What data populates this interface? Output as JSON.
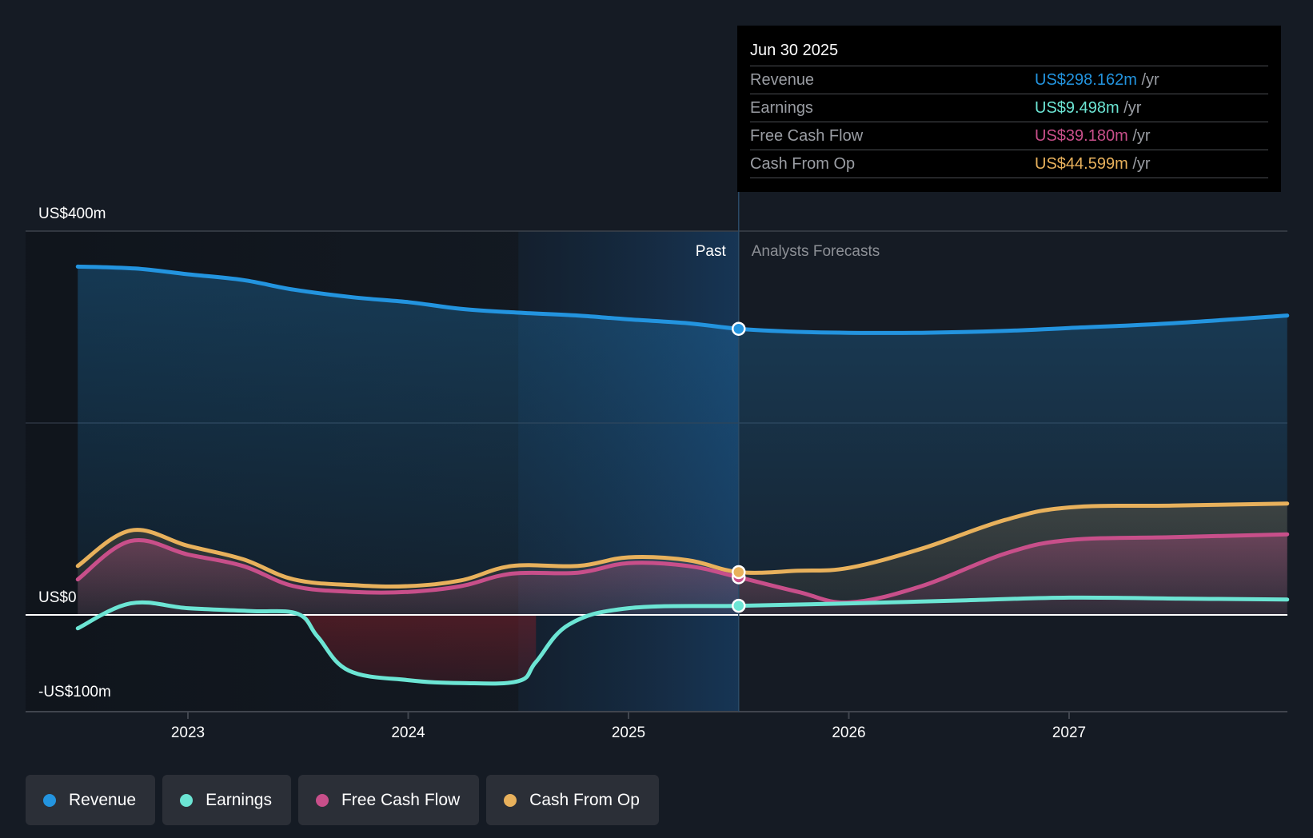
{
  "tooltip": {
    "date": "Jun 30 2025",
    "unit_suffix": "/yr",
    "rows": [
      {
        "label": "Revenue",
        "value": "US$298.162m",
        "color": "#2394df"
      },
      {
        "label": "Earnings",
        "value": "US$9.498m",
        "color": "#6ce5d4"
      },
      {
        "label": "Free Cash Flow",
        "value": "US$39.180m",
        "color": "#c84f8a"
      },
      {
        "label": "Cash From Op",
        "value": "US$44.599m",
        "color": "#e8b15c"
      }
    ]
  },
  "legend": [
    {
      "label": "Revenue",
      "color": "#2394df"
    },
    {
      "label": "Earnings",
      "color": "#6ce5d4"
    },
    {
      "label": "Free Cash Flow",
      "color": "#c84f8a"
    },
    {
      "label": "Cash From Op",
      "color": "#e8b15c"
    }
  ],
  "chart_data": {
    "type": "line",
    "title": "",
    "xlabel": "",
    "ylabel": "",
    "y_tick_labels": [
      "US$400m",
      "US$0",
      "-US$100m"
    ],
    "y_ticks": [
      400,
      0,
      -100
    ],
    "ylim": [
      -100,
      400
    ],
    "xlim": [
      2022.26,
      2028.0
    ],
    "x_tick_labels": [
      "2023",
      "2024",
      "2025",
      "2026",
      "2027"
    ],
    "x_ticks": [
      2023,
      2024,
      2025,
      2026,
      2027
    ],
    "past_label": "Past",
    "forecast_label": "Analysts Forecasts",
    "past_end": 2025.5,
    "highlight_start": 2024.5,
    "grid": true,
    "legend_position": "bottom",
    "series": [
      {
        "name": "Revenue",
        "color": "#2394df",
        "x": [
          2022.5,
          2022.76,
          2023.0,
          2023.25,
          2023.48,
          2023.75,
          2024.0,
          2024.24,
          2024.5,
          2024.77,
          2025.0,
          2025.27,
          2025.5,
          2025.77,
          2026.0,
          2026.33,
          2026.71,
          2027.0,
          2027.47,
          2027.99
        ],
        "values": [
          363,
          361,
          355,
          349,
          339,
          331,
          326,
          319,
          315,
          312,
          308,
          304,
          298.162,
          295,
          294,
          294,
          296,
          299,
          304,
          312
        ]
      },
      {
        "name": "Earnings",
        "color": "#6ce5d4",
        "x": [
          2022.5,
          2022.74,
          2023.0,
          2023.29,
          2023.5,
          2023.59,
          2023.73,
          2024.0,
          2024.24,
          2024.5,
          2024.58,
          2024.73,
          2025.0,
          2025.5,
          2026.0,
          2026.5,
          2027.0,
          2027.5,
          2027.99
        ],
        "values": [
          -14,
          12,
          7,
          4,
          1,
          -23,
          -58,
          -68,
          -71,
          -69,
          -49,
          -10,
          7,
          9.498,
          12,
          15,
          18,
          17,
          16
        ]
      },
      {
        "name": "Free Cash Flow",
        "color": "#c84f8a",
        "x": [
          2022.5,
          2022.74,
          2023.0,
          2023.25,
          2023.48,
          2023.75,
          2024.0,
          2024.24,
          2024.47,
          2024.77,
          2025.0,
          2025.27,
          2025.5,
          2025.77,
          2026.0,
          2026.33,
          2026.71,
          2027.0,
          2027.47,
          2027.99
        ],
        "values": [
          37,
          77,
          63,
          51,
          30,
          24,
          24,
          30,
          43,
          44,
          54,
          51,
          39.18,
          24,
          13,
          30,
          64,
          78,
          81,
          84
        ]
      },
      {
        "name": "Cash From Op",
        "color": "#e8b15c",
        "x": [
          2022.5,
          2022.74,
          2023.0,
          2023.25,
          2023.48,
          2023.75,
          2024.0,
          2024.24,
          2024.47,
          2024.77,
          2025.0,
          2025.27,
          2025.5,
          2025.77,
          2026.0,
          2026.33,
          2026.71,
          2027.0,
          2027.47,
          2027.99
        ],
        "values": [
          51,
          88,
          72,
          58,
          37,
          31,
          30,
          36,
          51,
          51,
          60,
          57,
          44.599,
          46,
          49,
          69,
          99,
          112,
          114,
          116
        ]
      }
    ]
  }
}
